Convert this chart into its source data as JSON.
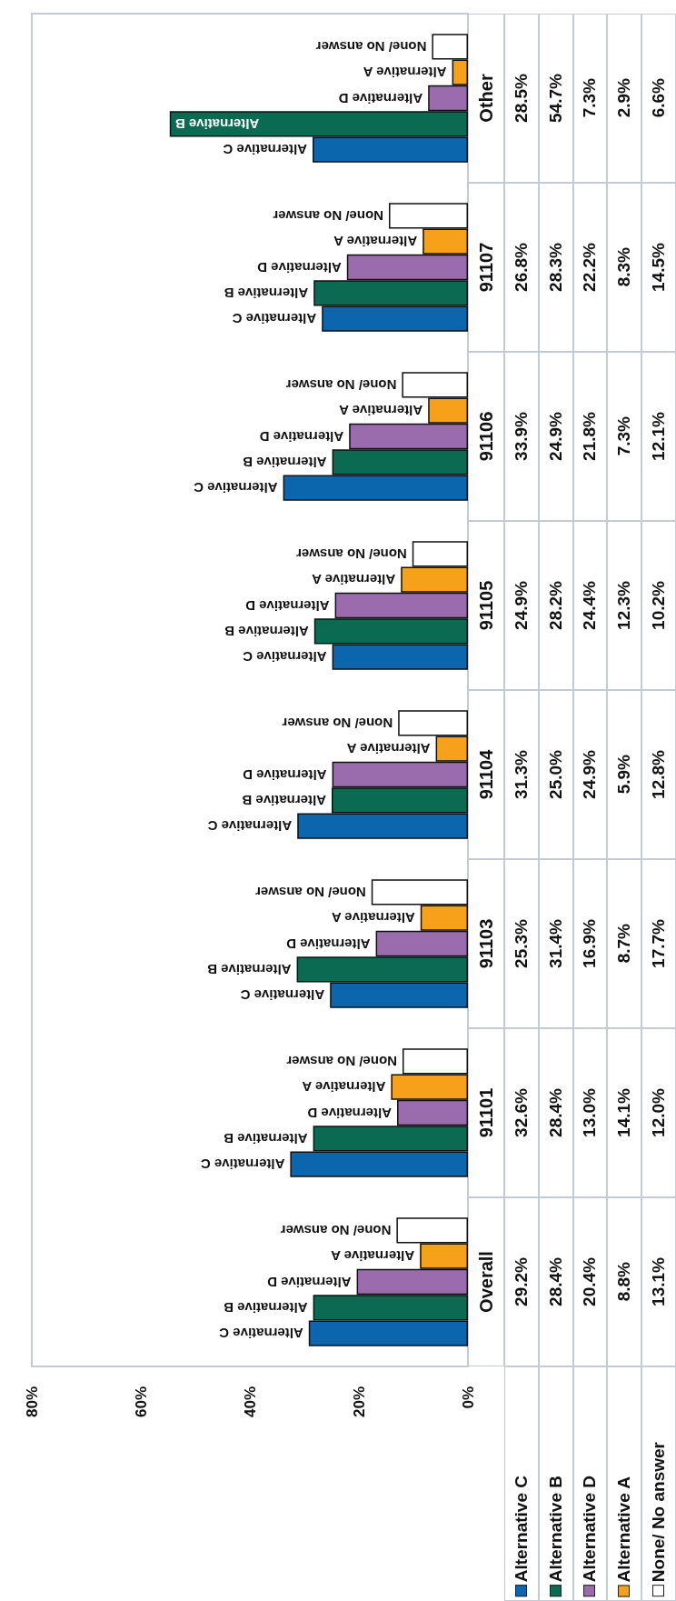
{
  "chart_data": {
    "type": "bar",
    "orientation": "horizontal",
    "categories": [
      "Other",
      "91107",
      "91106",
      "91105",
      "91104",
      "91103",
      "91101",
      "Overall"
    ],
    "series": [
      {
        "name": "Alternative C",
        "color": "#0b66ae",
        "values": [
          28.5,
          26.8,
          33.9,
          24.9,
          31.3,
          25.3,
          32.6,
          29.2
        ],
        "value_labels": [
          "28.5%",
          "26.8%",
          "33.9%",
          "24.9%",
          "31.3%",
          "25.3%",
          "32.6%",
          "29.2%"
        ]
      },
      {
        "name": "Alternative B",
        "color": "#0a6a52",
        "values": [
          54.7,
          28.3,
          24.9,
          28.2,
          25.0,
          31.4,
          28.4,
          28.4
        ],
        "value_labels": [
          "54.7%",
          "28.3%",
          "24.9%",
          "28.2%",
          "25.0%",
          "31.4%",
          "28.4%",
          "28.4%"
        ]
      },
      {
        "name": "Alternative D",
        "color": "#9a6cae",
        "values": [
          7.3,
          22.2,
          21.8,
          24.4,
          24.9,
          16.9,
          13.0,
          20.4
        ],
        "value_labels": [
          "7.3%",
          "22.2%",
          "21.8%",
          "24.4%",
          "24.9%",
          "16.9%",
          "13.0%",
          "20.4%"
        ]
      },
      {
        "name": "Alternative A",
        "color": "#f7a11a",
        "values": [
          2.9,
          8.3,
          7.3,
          12.3,
          5.9,
          8.7,
          14.1,
          8.8
        ],
        "value_labels": [
          "2.9%",
          "8.3%",
          "7.3%",
          "12.3%",
          "5.9%",
          "8.7%",
          "14.1%",
          "8.8%"
        ]
      },
      {
        "name": "None/ No answer",
        "color": "#ffffff",
        "values": [
          6.6,
          14.5,
          12.1,
          10.2,
          12.8,
          17.7,
          12.0,
          13.1
        ],
        "value_labels": [
          "6.6%",
          "14.5%",
          "12.1%",
          "10.2%",
          "12.8%",
          "17.7%",
          "12.0%",
          "13.1%"
        ]
      }
    ],
    "xlim": [
      80,
      0
    ],
    "xticks": [
      {
        "value": 80,
        "label": "80%"
      },
      {
        "value": 60,
        "label": "60%"
      },
      {
        "value": 40,
        "label": "40%"
      },
      {
        "value": 20,
        "label": "20%"
      },
      {
        "value": 0,
        "label": "0%"
      }
    ],
    "grid": false,
    "legend": "bottom"
  }
}
